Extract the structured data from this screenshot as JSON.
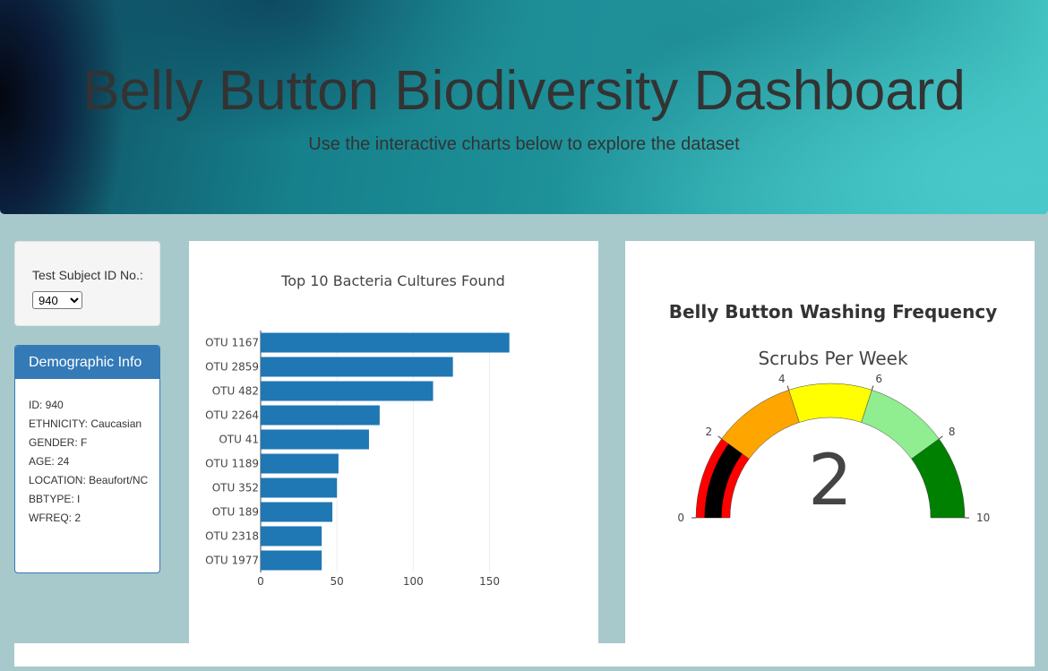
{
  "header": {
    "title": "Belly Button Biodiversity Dashboard",
    "subtitle": "Use the interactive charts below to explore the dataset"
  },
  "selector": {
    "label": "Test Subject ID No.:",
    "selected": "940"
  },
  "demographics": {
    "heading": "Demographic Info",
    "rows": [
      "ID: 940",
      "ETHNICITY: Caucasian",
      "GENDER: F",
      "AGE: 24",
      "LOCATION: Beaufort/NC",
      "BBTYPE: I",
      "WFREQ: 2"
    ]
  },
  "chart_data": [
    {
      "type": "bar",
      "orientation": "horizontal",
      "title": "Top 10 Bacteria Cultures Found",
      "categories": [
        "OTU 1167",
        "OTU 2859",
        "OTU 482",
        "OTU 2264",
        "OTU 41",
        "OTU 1189",
        "OTU 352",
        "OTU 189",
        "OTU 2318",
        "OTU 1977"
      ],
      "values": [
        163,
        126,
        113,
        78,
        71,
        51,
        50,
        47,
        40,
        40
      ],
      "xticks": [
        0,
        50,
        100,
        150
      ],
      "xlim": [
        0,
        172
      ],
      "color": "#1f77b4",
      "grid": true
    },
    {
      "type": "gauge",
      "title": "Belly Button Washing Frequency",
      "subtitle": "Scrubs Per Week",
      "value": 2,
      "range": [
        0,
        10
      ],
      "ticks": [
        0,
        2,
        4,
        6,
        8,
        10
      ],
      "steps": [
        {
          "range": [
            0,
            2
          ],
          "color": "#ff0000"
        },
        {
          "range": [
            2,
            4
          ],
          "color": "#ffa500"
        },
        {
          "range": [
            4,
            6
          ],
          "color": "#ffff00"
        },
        {
          "range": [
            6,
            8
          ],
          "color": "#90ee90"
        },
        {
          "range": [
            8,
            10
          ],
          "color": "#008000"
        }
      ],
      "bar_color": "#000000"
    }
  ]
}
